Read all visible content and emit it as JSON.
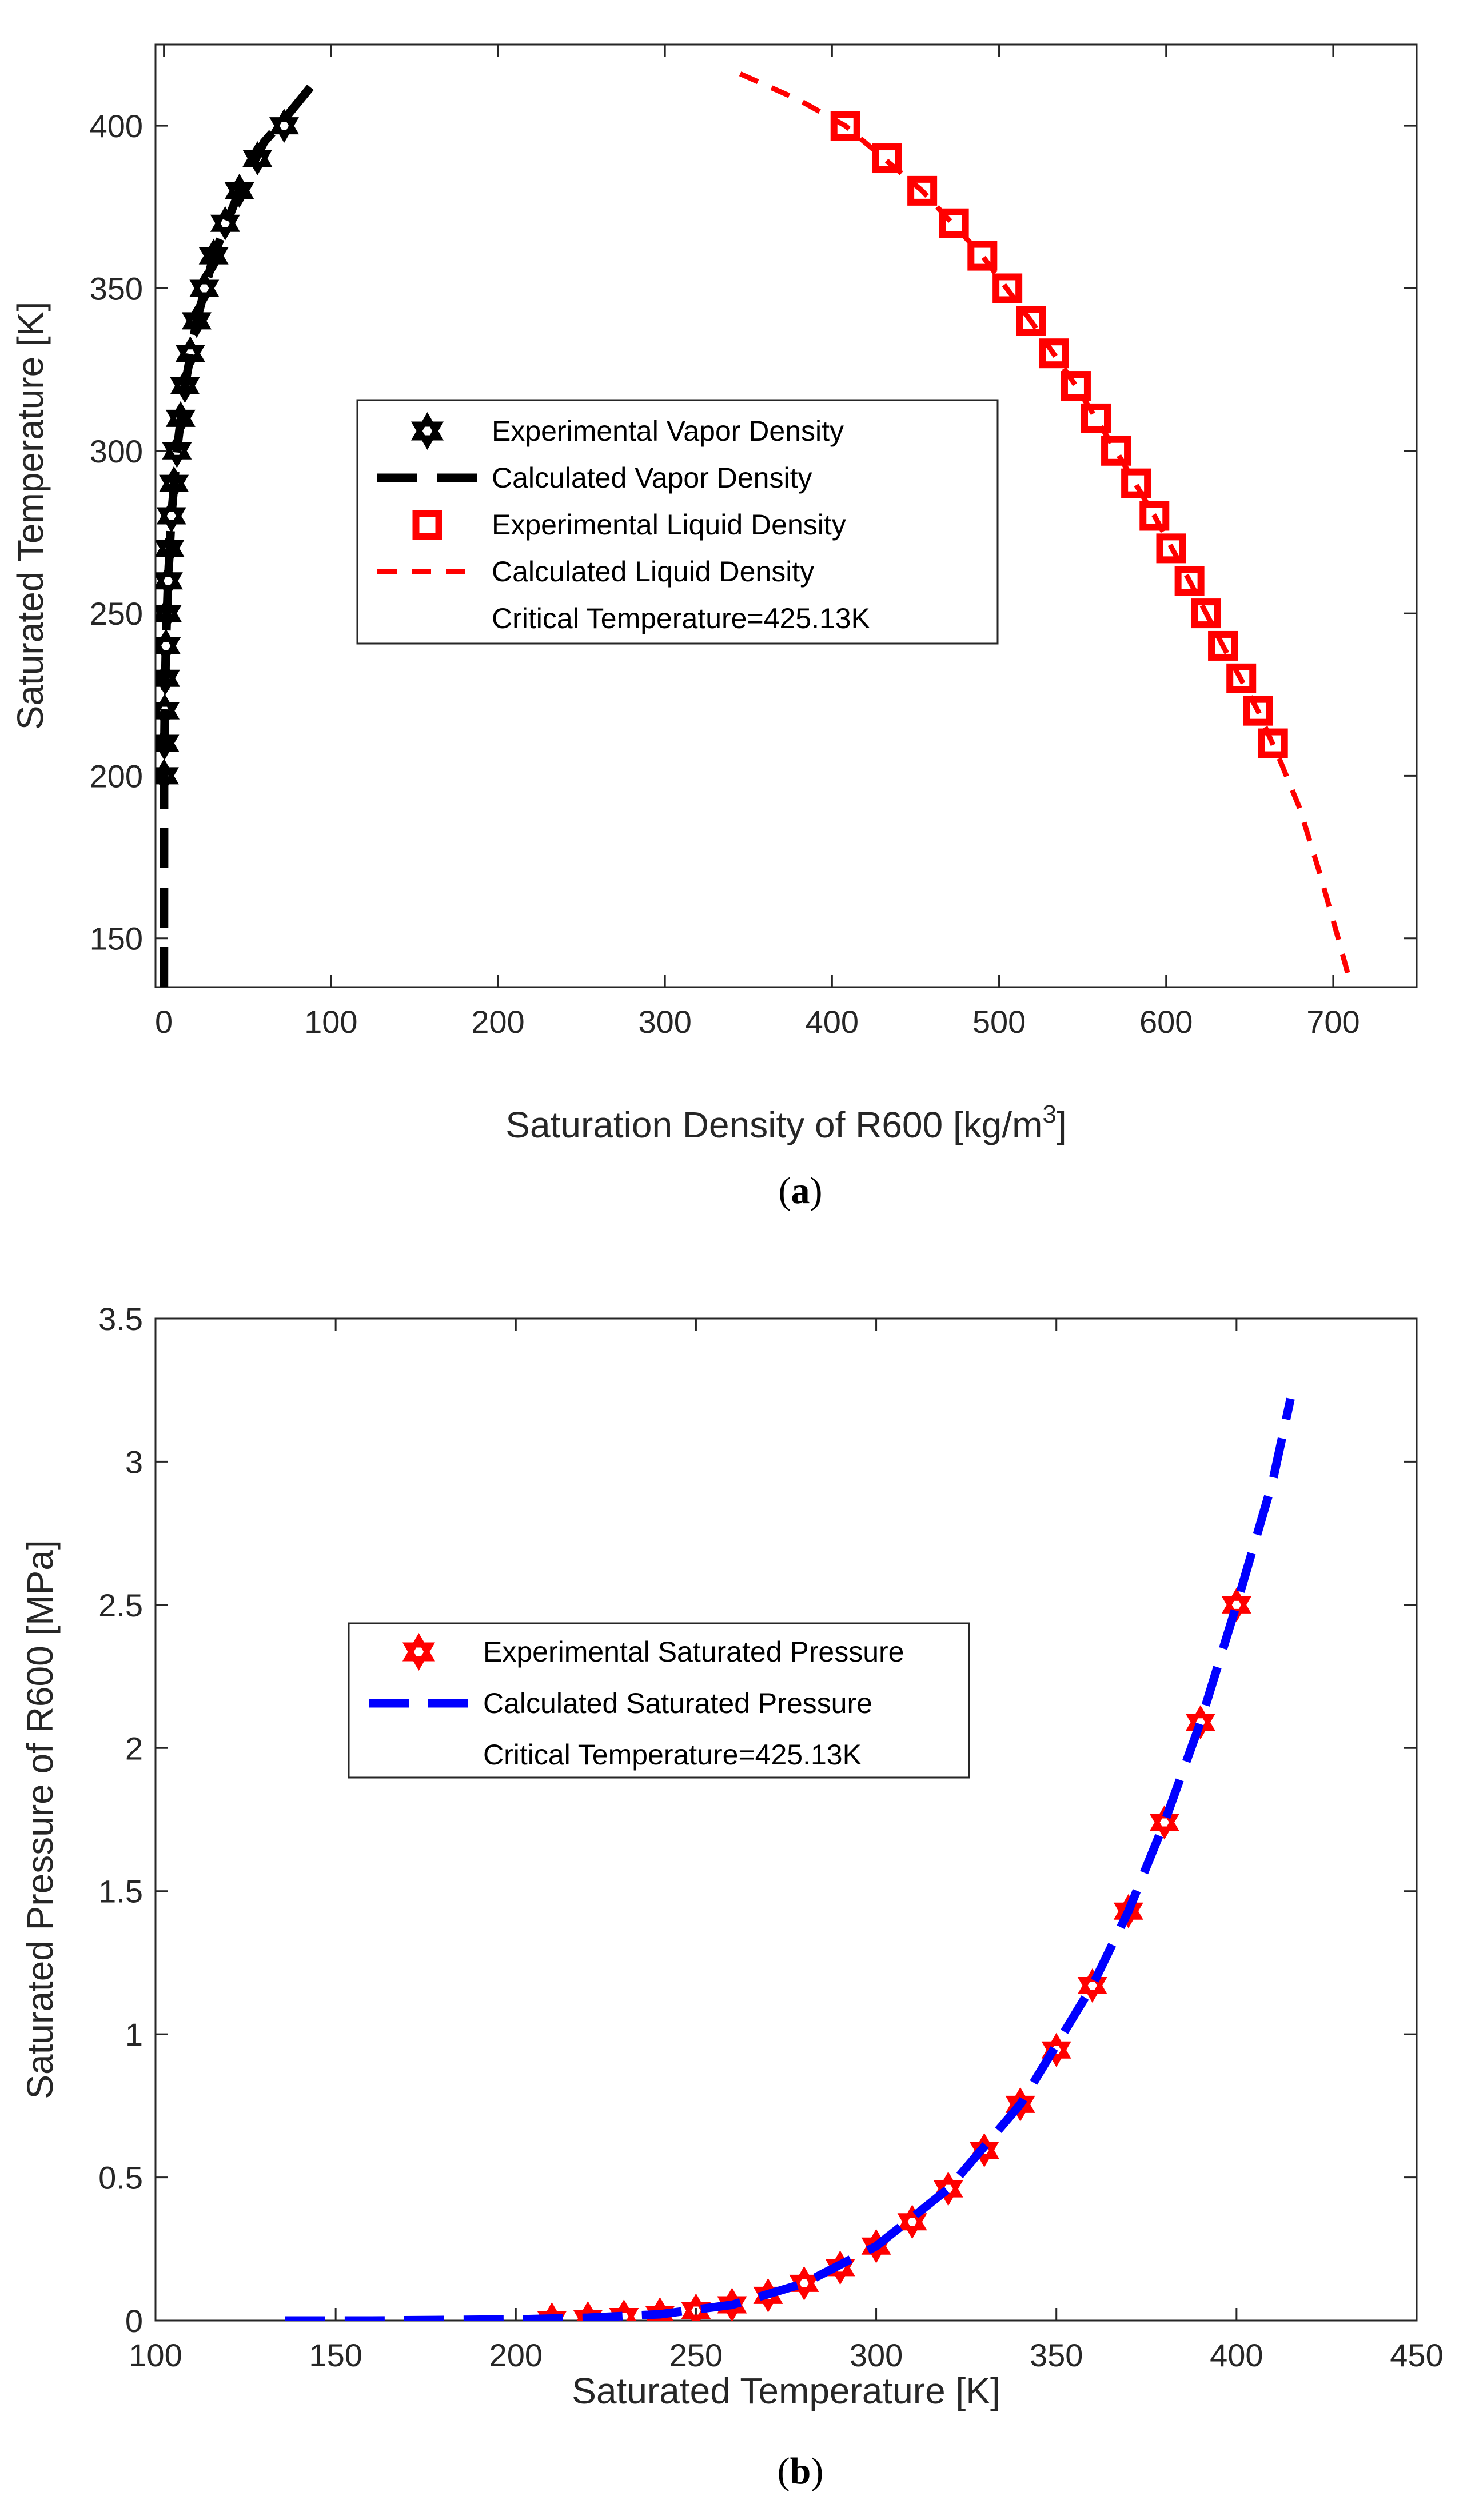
{
  "chart_data": [
    {
      "type": "scatter",
      "panel": "a",
      "caption_letter": "a",
      "xlabel": "Saturation Density of R600 [kg/m",
      "xlabel_sup": "3",
      "xlabel_end": "]",
      "ylabel": "Saturated Temperature [K]",
      "xlim": [
        -5,
        750
      ],
      "ylim": [
        135,
        425
      ],
      "xticks": [
        0,
        100,
        200,
        300,
        400,
        500,
        600,
        700
      ],
      "yticks": [
        150,
        200,
        250,
        300,
        350,
        400
      ],
      "legend_position": "center-left",
      "series": [
        {
          "name": "Experimental Vapor Density",
          "kind": "markers",
          "marker": "hexagram",
          "color": "#000000",
          "points": [
            [
              0.1,
              200
            ],
            [
              0.3,
              210
            ],
            [
              0.5,
              220
            ],
            [
              0.8,
              230
            ],
            [
              1.2,
              240
            ],
            [
              1.8,
              250
            ],
            [
              2.5,
              260
            ],
            [
              3.4,
              270
            ],
            [
              4.5,
              280
            ],
            [
              6.0,
              290
            ],
            [
              7.8,
              300
            ],
            [
              10.0,
              310
            ],
            [
              12.6,
              320
            ],
            [
              15.8,
              330
            ],
            [
              19.6,
              340
            ],
            [
              24.2,
              350
            ],
            [
              29.8,
              360
            ],
            [
              36.7,
              370
            ],
            [
              45.2,
              380
            ],
            [
              56.0,
              390
            ],
            [
              72.0,
              400
            ]
          ]
        },
        {
          "name": "Calculated Vapor Density",
          "kind": "line",
          "dash": "long",
          "color": "#000000",
          "points": [
            [
              0.02,
              135
            ],
            [
              0.1,
              180
            ],
            [
              0.1,
              200
            ],
            [
              0.5,
              220
            ],
            [
              1.2,
              240
            ],
            [
              2.5,
              260
            ],
            [
              4.5,
              280
            ],
            [
              7.8,
              300
            ],
            [
              12.6,
              320
            ],
            [
              19.6,
              340
            ],
            [
              29.8,
              360
            ],
            [
              45.2,
              380
            ],
            [
              60.0,
              395
            ],
            [
              72.0,
              402
            ],
            [
              88.0,
              412
            ],
            [
              92.0,
              415
            ]
          ]
        },
        {
          "name": "Experimental Liquid Density",
          "kind": "markers",
          "marker": "square",
          "color": "#ff0000",
          "points": [
            [
              408,
              400
            ],
            [
              433,
              390
            ],
            [
              454,
              380
            ],
            [
              473,
              370
            ],
            [
              490,
              360
            ],
            [
              505,
              350
            ],
            [
              519,
              340
            ],
            [
              533,
              330
            ],
            [
              546,
              320
            ],
            [
              558,
              310
            ],
            [
              570,
              300
            ],
            [
              582,
              290
            ],
            [
              593,
              280
            ],
            [
              603,
              270
            ],
            [
              614,
              260
            ],
            [
              624,
              250
            ],
            [
              634,
              240
            ],
            [
              645,
              230
            ],
            [
              655,
              220
            ],
            [
              664,
              210
            ]
          ]
        },
        {
          "name": "Calculated Liquid Density",
          "kind": "line",
          "dash": "short",
          "color": "#ff0000",
          "points": [
            [
              345,
              416
            ],
            [
              380,
              408
            ],
            [
              408,
              400
            ],
            [
              454,
              380
            ],
            [
              490,
              360
            ],
            [
              519,
              340
            ],
            [
              546,
              320
            ],
            [
              570,
              300
            ],
            [
              593,
              280
            ],
            [
              614,
              260
            ],
            [
              634,
              240
            ],
            [
              655,
              220
            ],
            [
              668,
              205
            ],
            [
              680,
              190
            ],
            [
              692,
              170
            ],
            [
              703,
              150
            ],
            [
              711,
              135
            ]
          ]
        }
      ],
      "legend": [
        {
          "label": "Experimental Vapor Density",
          "style": "marker-hexagram",
          "color": "#000000"
        },
        {
          "label": "Calculated Vapor Density",
          "style": "dash-long",
          "color": "#000000"
        },
        {
          "label": "Experimental Liquid Density",
          "style": "marker-square",
          "color": "#ff0000"
        },
        {
          "label": "Calculated Liquid Density",
          "style": "dash-short",
          "color": "#ff0000"
        },
        {
          "label": "Critical Temperature=425.13K",
          "style": "none",
          "color": "#000000"
        }
      ]
    },
    {
      "type": "scatter",
      "panel": "b",
      "caption_letter": "b",
      "xlabel": "Saturated Temperature [K]",
      "ylabel": "Saturated Pressure of R600 [MPa]",
      "xlim": [
        100,
        450
      ],
      "ylim": [
        0,
        3.5
      ],
      "xticks": [
        100,
        150,
        200,
        250,
        300,
        350,
        400,
        450
      ],
      "yticks": [
        0,
        0.5,
        1,
        1.5,
        2,
        2.5,
        3,
        3.5
      ],
      "legend_position": "upper-left",
      "series": [
        {
          "name": "Experimental Saturated Pressure",
          "kind": "markers",
          "marker": "hexagram",
          "color": "#ff0000",
          "points": [
            [
              210,
              0.004
            ],
            [
              220,
              0.008
            ],
            [
              230,
              0.014
            ],
            [
              240,
              0.022
            ],
            [
              250,
              0.035
            ],
            [
              260,
              0.055
            ],
            [
              270,
              0.088
            ],
            [
              280,
              0.13
            ],
            [
              290,
              0.185
            ],
            [
              300,
              0.26
            ],
            [
              310,
              0.345
            ],
            [
              320,
              0.46
            ],
            [
              330,
              0.595
            ],
            [
              340,
              0.755
            ],
            [
              350,
              0.945
            ],
            [
              360,
              1.17
            ],
            [
              370,
              1.43
            ],
            [
              380,
              1.74
            ],
            [
              390,
              2.09
            ],
            [
              400,
              2.5
            ]
          ]
        },
        {
          "name": "Calculated Saturated Pressure",
          "kind": "line",
          "dash": "long",
          "color": "#0000ff",
          "points": [
            [
              136,
              0.0
            ],
            [
              160,
              0.0
            ],
            [
              180,
              0.002
            ],
            [
              200,
              0.004
            ],
            [
              220,
              0.01
            ],
            [
              240,
              0.022
            ],
            [
              260,
              0.055
            ],
            [
              280,
              0.13
            ],
            [
              300,
              0.26
            ],
            [
              320,
              0.46
            ],
            [
              340,
              0.755
            ],
            [
              360,
              1.17
            ],
            [
              370,
              1.43
            ],
            [
              380,
              1.74
            ],
            [
              390,
              2.09
            ],
            [
              400,
              2.5
            ],
            [
              410,
              2.93
            ],
            [
              415,
              3.22
            ]
          ]
        }
      ],
      "legend": [
        {
          "label": "Experimental Saturated Pressure",
          "style": "marker-hexagram",
          "color": "#ff0000"
        },
        {
          "label": "Calculated Saturated Pressure",
          "style": "dash-long",
          "color": "#0000ff"
        },
        {
          "label": "Critical Temperature=425.13K",
          "style": "none",
          "color": "#000000"
        }
      ]
    }
  ]
}
